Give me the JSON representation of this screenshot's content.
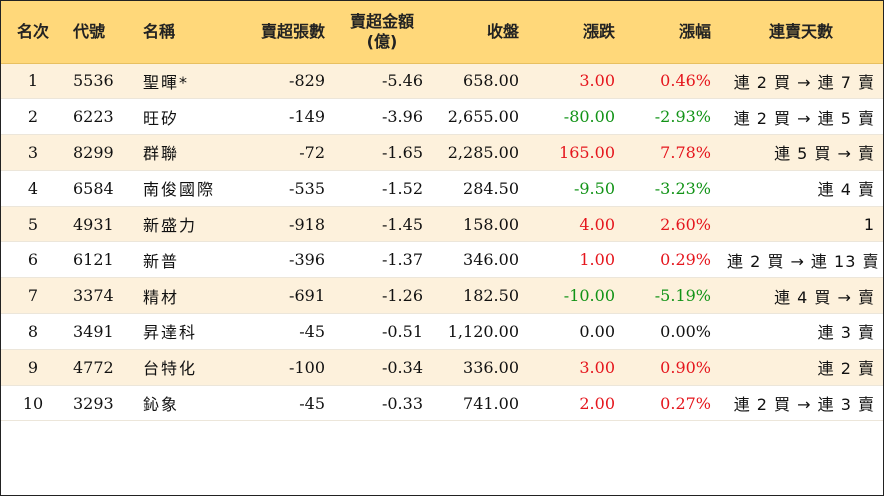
{
  "headers": {
    "rank": "名次",
    "code": "代號",
    "name": "名稱",
    "net_sell_lots": "賣超張數",
    "net_sell_amount": "賣超金額",
    "net_sell_amount_unit": "(億)",
    "close": "收盤",
    "change": "漲跌",
    "pct": "漲幅",
    "streak": "連賣天數"
  },
  "rows": [
    {
      "rank": "1",
      "code": "5536",
      "name": "聖暉*",
      "lots": "-829",
      "amount": "-5.46",
      "close": "658.00",
      "change": "3.00",
      "pct": "0.46%",
      "dir": "up",
      "streak": "連 2 買 → 連 7 賣"
    },
    {
      "rank": "2",
      "code": "6223",
      "name": "旺矽",
      "lots": "-149",
      "amount": "-3.96",
      "close": "2,655.00",
      "change": "-80.00",
      "pct": "-2.93%",
      "dir": "down",
      "streak": "連 2 買 → 連 5 賣"
    },
    {
      "rank": "3",
      "code": "8299",
      "name": "群聯",
      "lots": "-72",
      "amount": "-1.65",
      "close": "2,285.00",
      "change": "165.00",
      "pct": "7.78%",
      "dir": "up",
      "streak": "連 5 買 → 賣"
    },
    {
      "rank": "4",
      "code": "6584",
      "name": "南俊國際",
      "lots": "-535",
      "amount": "-1.52",
      "close": "284.50",
      "change": "-9.50",
      "pct": "-3.23%",
      "dir": "down",
      "streak": "連 4 賣"
    },
    {
      "rank": "5",
      "code": "4931",
      "name": "新盛力",
      "lots": "-918",
      "amount": "-1.45",
      "close": "158.00",
      "change": "4.00",
      "pct": "2.60%",
      "dir": "up",
      "streak": "1"
    },
    {
      "rank": "6",
      "code": "6121",
      "name": "新普",
      "lots": "-396",
      "amount": "-1.37",
      "close": "346.00",
      "change": "1.00",
      "pct": "0.29%",
      "dir": "up",
      "streak": "連 2 買 → 連 13 賣"
    },
    {
      "rank": "7",
      "code": "3374",
      "name": "精材",
      "lots": "-691",
      "amount": "-1.26",
      "close": "182.50",
      "change": "-10.00",
      "pct": "-5.19%",
      "dir": "down",
      "streak": "連 4 買 → 賣"
    },
    {
      "rank": "8",
      "code": "3491",
      "name": "昇達科",
      "lots": "-45",
      "amount": "-0.51",
      "close": "1,120.00",
      "change": "0.00",
      "pct": "0.00%",
      "dir": "flat",
      "streak": "連 3 賣"
    },
    {
      "rank": "9",
      "code": "4772",
      "name": "台特化",
      "lots": "-100",
      "amount": "-0.34",
      "close": "336.00",
      "change": "3.00",
      "pct": "0.90%",
      "dir": "up",
      "streak": "連 2 賣"
    },
    {
      "rank": "10",
      "code": "3293",
      "name": "鈊象",
      "lots": "-45",
      "amount": "-0.33",
      "close": "741.00",
      "change": "2.00",
      "pct": "0.27%",
      "dir": "up",
      "streak": "連 2 買 → 連 3 賣"
    }
  ],
  "colors": {
    "header_bg": "#ffd87a",
    "odd_row_bg": "#fdf1dc",
    "even_row_bg": "#ffffff",
    "up": "#e5161d",
    "down": "#129317",
    "flat": "#111111"
  }
}
